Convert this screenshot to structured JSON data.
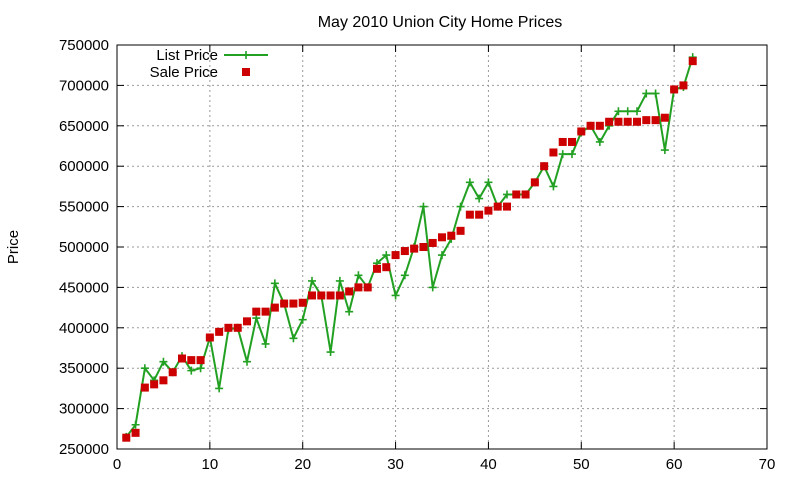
{
  "chart_data": {
    "type": "line",
    "title": "May 2010 Union City Home Prices",
    "xlabel": "",
    "ylabel": "Price",
    "xlim": [
      0,
      70
    ],
    "ylim": [
      250000,
      750000
    ],
    "xticks": [
      "0",
      "10",
      "20",
      "30",
      "40",
      "50",
      "60",
      "70"
    ],
    "yticks": [
      "250000",
      "300000",
      "350000",
      "400000",
      "450000",
      "500000",
      "550000",
      "600000",
      "650000",
      "700000",
      "750000"
    ],
    "grid": true,
    "legend_position": "top-left",
    "series": [
      {
        "name": "List Price",
        "color": "#22a022",
        "marker": "plus",
        "x": [
          1,
          2,
          3,
          4,
          5,
          6,
          7,
          8,
          9,
          10,
          11,
          12,
          13,
          14,
          15,
          16,
          17,
          18,
          19,
          20,
          21,
          22,
          23,
          24,
          25,
          26,
          27,
          28,
          29,
          30,
          31,
          32,
          33,
          34,
          35,
          36,
          37,
          38,
          39,
          40,
          41,
          42,
          43,
          44,
          45,
          46,
          47,
          48,
          49,
          50,
          51,
          52,
          53,
          54,
          55,
          56,
          57,
          58,
          59,
          60,
          61,
          62
        ],
        "y": [
          265000,
          280000,
          350000,
          335000,
          358000,
          345000,
          365000,
          347000,
          350000,
          388000,
          325000,
          398000,
          400000,
          358000,
          412000,
          380000,
          455000,
          430000,
          387000,
          410000,
          458000,
          440000,
          370000,
          458000,
          420000,
          465000,
          450000,
          480000,
          490000,
          440000,
          465000,
          500000,
          550000,
          450000,
          490000,
          510000,
          550000,
          580000,
          560000,
          580000,
          550000,
          565000,
          565000,
          565000,
          580000,
          600000,
          575000,
          615000,
          615000,
          642000,
          650000,
          630000,
          650000,
          668000,
          668000,
          668000,
          690000,
          690000,
          620000,
          695000,
          698000,
          735000
        ]
      },
      {
        "name": "Sale Price",
        "color": "#cc0000",
        "marker": "square",
        "x": [
          1,
          2,
          3,
          4,
          5,
          6,
          7,
          8,
          9,
          10,
          11,
          12,
          13,
          14,
          15,
          16,
          17,
          18,
          19,
          20,
          21,
          22,
          23,
          24,
          25,
          26,
          27,
          28,
          29,
          30,
          31,
          32,
          33,
          34,
          35,
          36,
          37,
          38,
          39,
          40,
          41,
          42,
          43,
          44,
          45,
          46,
          47,
          48,
          49,
          50,
          51,
          52,
          53,
          54,
          55,
          56,
          57,
          58,
          59,
          60,
          61,
          62
        ],
        "y": [
          264000,
          270000,
          326000,
          330000,
          335000,
          345000,
          362000,
          360000,
          360000,
          388000,
          395000,
          400000,
          400000,
          408000,
          420000,
          420000,
          425000,
          430000,
          430000,
          431000,
          440000,
          440000,
          440000,
          440000,
          445000,
          450000,
          450000,
          473000,
          475000,
          490000,
          495000,
          498000,
          500000,
          505000,
          512000,
          514000,
          520000,
          540000,
          540000,
          545000,
          550000,
          550000,
          565000,
          565000,
          580000,
          600000,
          617000,
          630000,
          630000,
          643000,
          650000,
          650000,
          655000,
          655000,
          655000,
          655000,
          657000,
          657000,
          660000,
          695000,
          700000,
          730000
        ]
      }
    ]
  }
}
